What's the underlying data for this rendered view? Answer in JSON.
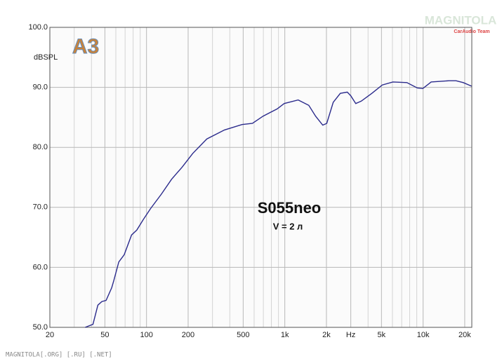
{
  "chart_data": {
    "type": "line",
    "ylabel": "dBSPL",
    "annotations": [
      "S055neo",
      "V = 2 л"
    ],
    "logo": "A3",
    "watermark": "MAGNITOLA",
    "watermark_sub": "CarAudio Team",
    "footer": "MAGNITOLA[.ORG] [.RU] [.NET]",
    "xscale": "log",
    "xlim": [
      20,
      22500
    ],
    "ylim": [
      50,
      100
    ],
    "xticks": [
      20,
      50,
      100,
      200,
      500,
      {
        "value": 1000,
        "label": "1k"
      },
      {
        "value": 2000,
        "label": "2k"
      },
      {
        "value": 3000,
        "label": "Hz"
      },
      {
        "value": 5000,
        "label": "5k"
      },
      {
        "value": 10000,
        "label": "10k"
      },
      {
        "value": 20000,
        "label": "20k"
      }
    ],
    "x_minor_grid": [
      30,
      40,
      60,
      70,
      80,
      90,
      300,
      400,
      600,
      700,
      800,
      900,
      4000,
      6000,
      7000,
      8000,
      9000
    ],
    "yticks": [
      {
        "value": 50,
        "label": "50.0"
      },
      {
        "value": 60,
        "label": "60.0"
      },
      {
        "value": 70,
        "label": "70.0"
      },
      {
        "value": 80,
        "label": "80.0"
      },
      {
        "value": 90,
        "label": "90.0"
      },
      {
        "value": 100,
        "label": "100.0"
      }
    ],
    "grid": true,
    "color": "#2b2b8c",
    "x": [
      36,
      41,
      44.5,
      47.5,
      51,
      56,
      58,
      63,
      69,
      78,
      85,
      95,
      107,
      128,
      152,
      181,
      216,
      273,
      366,
      490,
      584,
      696,
      880,
      990,
      1250,
      1490,
      1670,
      1880,
      2010,
      2240,
      2520,
      2830,
      3000,
      3260,
      3570,
      4260,
      5070,
      6050,
      7630,
      9070,
      9950,
      11440,
      15400,
      17300,
      19500,
      22400
    ],
    "values": [
      50.0,
      50.5,
      53.7,
      54.3,
      54.5,
      56.6,
      57.8,
      60.9,
      62.1,
      65.4,
      66.2,
      68.0,
      69.8,
      72.2,
      74.7,
      76.7,
      79.0,
      81.4,
      82.9,
      83.8,
      84.0,
      85.2,
      86.4,
      87.3,
      87.9,
      87.0,
      85.2,
      83.7,
      84.0,
      87.5,
      89.0,
      89.2,
      88.6,
      87.3,
      87.7,
      89.0,
      90.4,
      90.9,
      90.8,
      89.9,
      89.8,
      90.9,
      91.1,
      91.1,
      90.8,
      90.2
    ]
  }
}
